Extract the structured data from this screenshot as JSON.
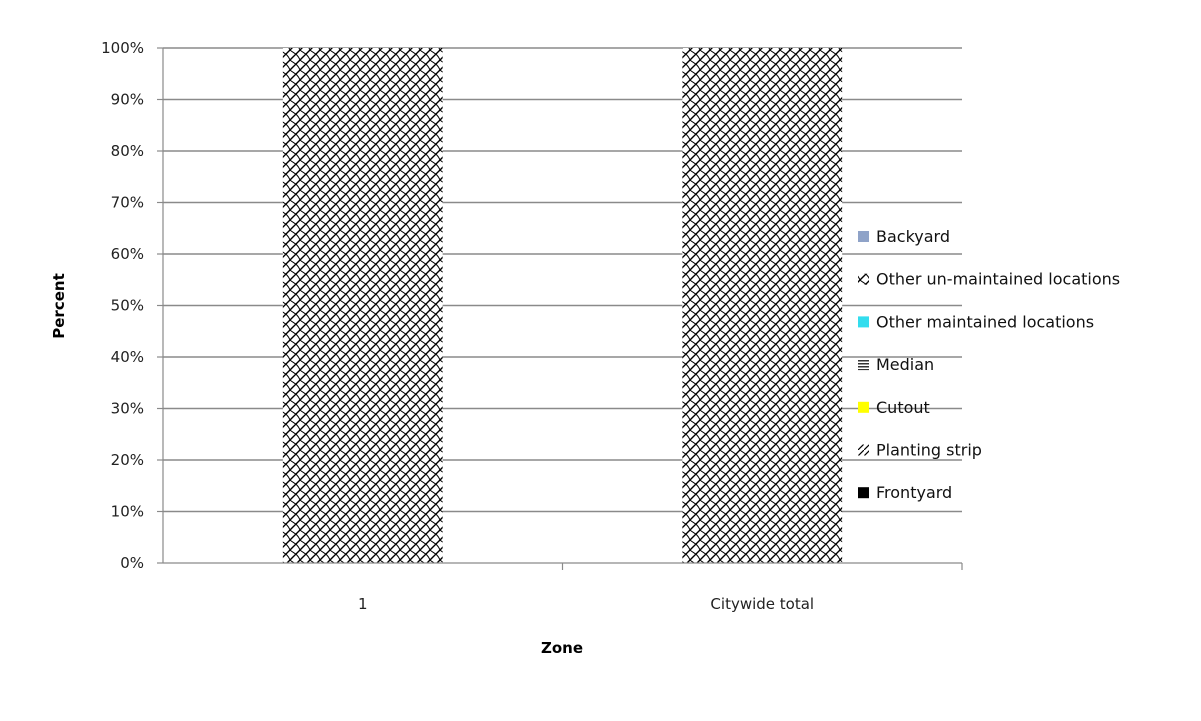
{
  "chart_data": {
    "type": "bar",
    "stacked": true,
    "percent": true,
    "title": "",
    "xlabel": "Zone",
    "ylabel": "Percent",
    "categories": [
      "1",
      "Citywide total"
    ],
    "ylim": [
      0,
      100
    ],
    "yticks": [
      "0%",
      "10%",
      "20%",
      "30%",
      "40%",
      "50%",
      "60%",
      "70%",
      "80%",
      "90%",
      "100%"
    ],
    "grid": true,
    "legend_position": "right",
    "series": [
      {
        "name": "Frontyard",
        "values": [
          0,
          0
        ],
        "color": "#000000",
        "pattern": "solid"
      },
      {
        "name": "Planting strip",
        "values": [
          0,
          0
        ],
        "color": "#ffffff",
        "pattern": "sparse-diagonal"
      },
      {
        "name": "Cutout",
        "values": [
          0,
          0
        ],
        "color": "#ffff00",
        "pattern": "solid"
      },
      {
        "name": "Median",
        "values": [
          0,
          0
        ],
        "color": "#333333",
        "pattern": "horizontal-lines"
      },
      {
        "name": "Other maintained locations",
        "values": [
          0,
          0
        ],
        "color": "#33ddee",
        "pattern": "solid"
      },
      {
        "name": "Other un-maintained locations",
        "values": [
          100,
          100
        ],
        "color": "#000000",
        "pattern": "crosshatch"
      },
      {
        "name": "Backyard",
        "values": [
          0,
          0
        ],
        "color": "#8fa3c8",
        "pattern": "solid"
      }
    ]
  }
}
